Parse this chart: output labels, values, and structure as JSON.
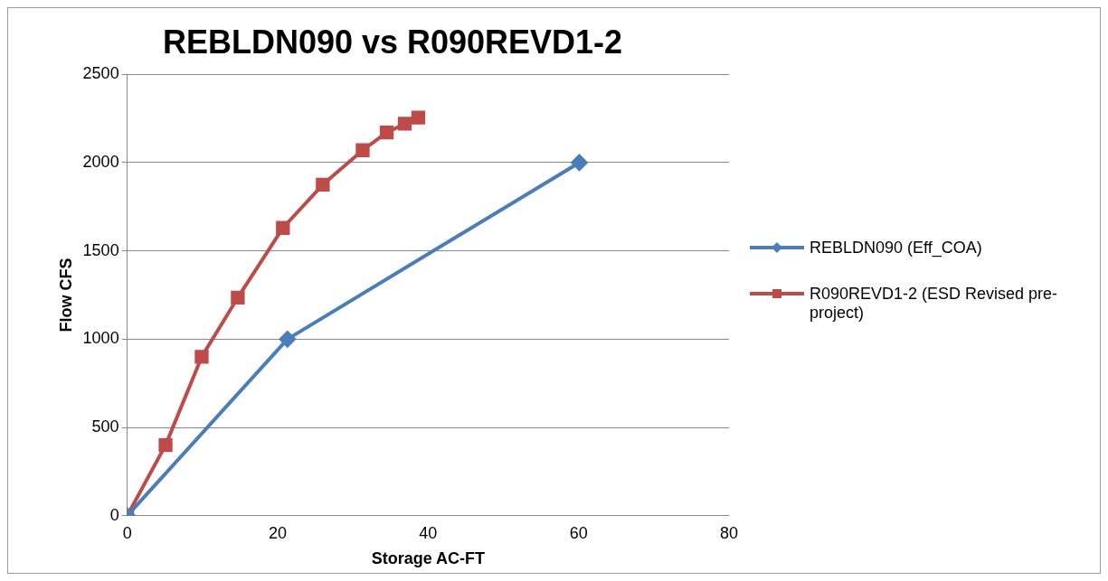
{
  "chart_data": {
    "type": "line",
    "title": "REBLDN090 vs R090REVD1-2",
    "xlabel": "Storage AC-FT",
    "ylabel": "Flow CFS",
    "xlim": [
      0,
      80
    ],
    "xticks": [
      0,
      20,
      40,
      60,
      80
    ],
    "ylim": [
      0,
      2500
    ],
    "yticks": [
      0,
      500,
      1000,
      1500,
      2000,
      2500
    ],
    "grid": "y",
    "legend": "right",
    "series": [
      {
        "name": "REBLDN090 (Eff_COA)",
        "color": "#4a7ebb",
        "marker": "diamond",
        "x": [
          0,
          21.3,
          60.1
        ],
        "values": [
          0,
          1000,
          2000
        ]
      },
      {
        "name": "R090REVD1-2  (ESD Revised pre-project)",
        "color": "#be4b48",
        "marker": "square",
        "x": [
          0,
          5.1,
          9.9,
          14.7,
          20.7,
          26,
          31.3,
          34.5,
          36.9,
          38.7
        ],
        "values": [
          0,
          400,
          900,
          1235,
          1630,
          1875,
          2070,
          2170,
          2220,
          2255
        ]
      }
    ]
  }
}
